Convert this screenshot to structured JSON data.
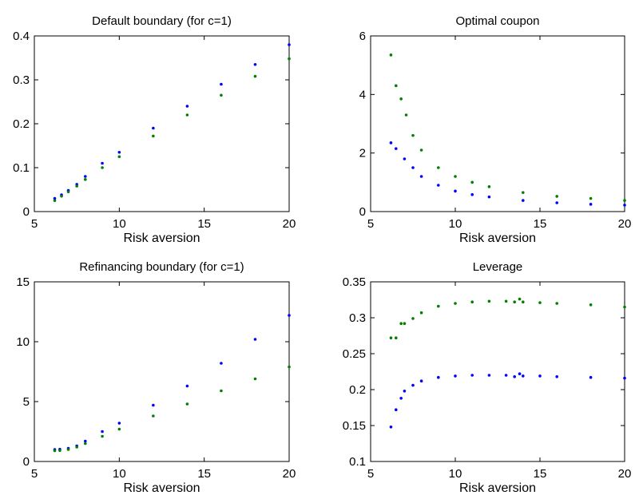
{
  "figure": {
    "colors": {
      "series_a": "#0000ff",
      "series_b": "#008000",
      "axes": "#000000",
      "background": "#ffffff"
    }
  },
  "chart_data": [
    {
      "type": "scatter",
      "title": "Default boundary (for c=1)",
      "xlabel": "Risk aversion",
      "ylabel": "",
      "xlim": [
        5,
        20
      ],
      "ylim": [
        0,
        0.4
      ],
      "xticks": [
        "5",
        "10",
        "15",
        "20"
      ],
      "yticks": [
        "0",
        "0.1",
        "0.2",
        "0.3",
        "0.4"
      ],
      "grid": false,
      "series": [
        {
          "color": "#0000ff",
          "x": [
            6.2,
            6.6,
            7.0,
            7.5,
            8.0,
            9.0,
            10.0,
            12.0,
            14.0,
            16.0,
            18.0,
            20.0
          ],
          "y": [
            0.03,
            0.038,
            0.048,
            0.062,
            0.08,
            0.11,
            0.135,
            0.19,
            0.24,
            0.29,
            0.335,
            0.38
          ]
        },
        {
          "color": "#008000",
          "x": [
            6.2,
            6.6,
            7.0,
            7.5,
            8.0,
            9.0,
            10.0,
            12.0,
            14.0,
            16.0,
            18.0,
            20.0
          ],
          "y": [
            0.025,
            0.035,
            0.045,
            0.058,
            0.073,
            0.1,
            0.125,
            0.172,
            0.22,
            0.265,
            0.308,
            0.348
          ]
        }
      ]
    },
    {
      "type": "scatter",
      "title": "Optimal coupon",
      "xlabel": "Risk aversion",
      "ylabel": "",
      "xlim": [
        5,
        20
      ],
      "ylim": [
        0,
        6
      ],
      "xticks": [
        "5",
        "10",
        "15",
        "20"
      ],
      "yticks": [
        "0",
        "2",
        "4",
        "6"
      ],
      "grid": false,
      "series": [
        {
          "color": "#0000ff",
          "x": [
            6.2,
            6.5,
            7.0,
            7.5,
            8.0,
            9.0,
            10.0,
            11.0,
            12.0,
            14.0,
            16.0,
            18.0,
            20.0
          ],
          "y": [
            2.35,
            2.15,
            1.8,
            1.5,
            1.2,
            0.9,
            0.7,
            0.58,
            0.5,
            0.38,
            0.3,
            0.25,
            0.22
          ]
        },
        {
          "color": "#008000",
          "x": [
            6.2,
            6.5,
            6.8,
            7.1,
            7.5,
            8.0,
            9.0,
            10.0,
            11.0,
            12.0,
            14.0,
            16.0,
            18.0,
            20.0
          ],
          "y": [
            5.35,
            4.3,
            3.85,
            3.3,
            2.6,
            2.1,
            1.5,
            1.2,
            1.0,
            0.85,
            0.65,
            0.52,
            0.45,
            0.38
          ]
        }
      ]
    },
    {
      "type": "scatter",
      "title": "Refinancing boundary (for c=1)",
      "xlabel": "Risk aversion",
      "ylabel": "",
      "xlim": [
        5,
        20
      ],
      "ylim": [
        0,
        15
      ],
      "xticks": [
        "5",
        "10",
        "15",
        "20"
      ],
      "yticks": [
        "0",
        "5",
        "10",
        "15"
      ],
      "grid": false,
      "series": [
        {
          "color": "#0000ff",
          "x": [
            6.2,
            6.5,
            7.0,
            7.5,
            8.0,
            9.0,
            10.0,
            12.0,
            14.0,
            16.0,
            18.0,
            20.0
          ],
          "y": [
            1.0,
            1.02,
            1.1,
            1.3,
            1.7,
            2.5,
            3.2,
            4.7,
            6.3,
            8.2,
            10.2,
            12.2
          ]
        },
        {
          "color": "#008000",
          "x": [
            6.2,
            6.5,
            7.0,
            7.5,
            8.0,
            9.0,
            10.0,
            12.0,
            14.0,
            16.0,
            18.0,
            20.0
          ],
          "y": [
            0.9,
            0.92,
            1.0,
            1.2,
            1.5,
            2.1,
            2.7,
            3.8,
            4.8,
            5.9,
            6.9,
            7.9
          ]
        }
      ]
    },
    {
      "type": "scatter",
      "title": "Leverage",
      "xlabel": "Risk aversion",
      "ylabel": "",
      "xlim": [
        5,
        20
      ],
      "ylim": [
        0.1,
        0.35
      ],
      "xticks": [
        "5",
        "10",
        "15",
        "20"
      ],
      "yticks": [
        "0.1",
        "0.15",
        "0.2",
        "0.25",
        "0.3",
        "0.35"
      ],
      "grid": false,
      "series": [
        {
          "color": "#0000ff",
          "x": [
            6.2,
            6.5,
            6.8,
            7.0,
            7.5,
            8.0,
            9.0,
            10.0,
            11.0,
            12.0,
            13.0,
            13.5,
            13.8,
            14.0,
            15.0,
            16.0,
            18.0,
            20.0
          ],
          "y": [
            0.148,
            0.172,
            0.188,
            0.198,
            0.206,
            0.212,
            0.217,
            0.219,
            0.22,
            0.22,
            0.22,
            0.218,
            0.222,
            0.219,
            0.219,
            0.218,
            0.217,
            0.216
          ]
        },
        {
          "color": "#008000",
          "x": [
            6.2,
            6.5,
            6.8,
            7.0,
            7.5,
            8.0,
            9.0,
            10.0,
            11.0,
            12.0,
            13.0,
            13.5,
            13.8,
            14.0,
            15.0,
            16.0,
            18.0,
            20.0
          ],
          "y": [
            0.272,
            0.272,
            0.292,
            0.292,
            0.299,
            0.307,
            0.316,
            0.32,
            0.322,
            0.323,
            0.323,
            0.322,
            0.326,
            0.322,
            0.321,
            0.32,
            0.318,
            0.315
          ]
        }
      ]
    }
  ]
}
